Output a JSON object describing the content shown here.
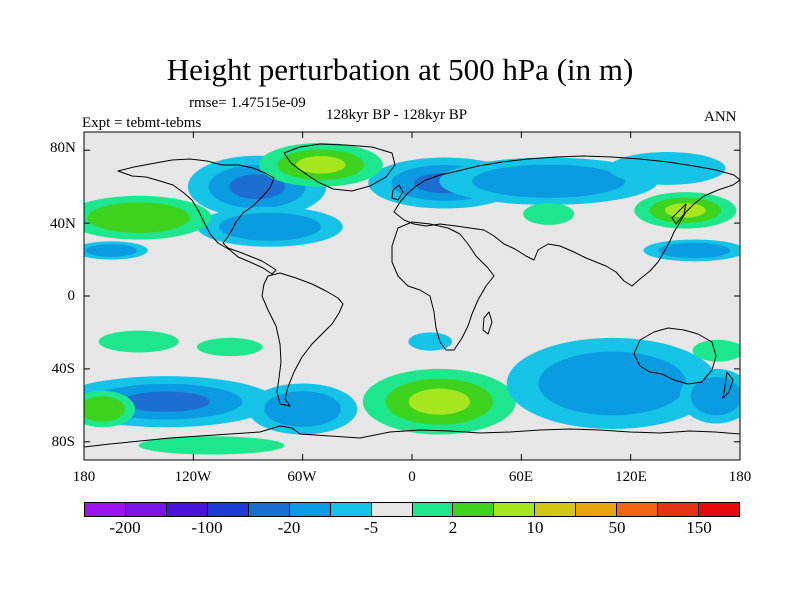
{
  "title": "Height perturbation at 500 hPa (in m)",
  "rmse": "rmse= 1.47515e-09",
  "expt": "Expt = tebmt-tebms",
  "period": "128kyr BP - 128kyr BP",
  "season": "ANN",
  "chart_data": {
    "type": "heatmap",
    "title": "Height perturbation at 500 hPa (in m)",
    "projection": "cylindrical-equidistant",
    "lon_range": [
      -180,
      180
    ],
    "lat_range": [
      -90,
      90
    ],
    "background": "#e6e6e6",
    "lat_ticks": [
      {
        "value": 80,
        "label": "80N"
      },
      {
        "value": 40,
        "label": "40N"
      },
      {
        "value": 0,
        "label": "0"
      },
      {
        "value": -40,
        "label": "40S"
      },
      {
        "value": -80,
        "label": "80S"
      }
    ],
    "lon_ticks": [
      {
        "value": -180,
        "label": "180"
      },
      {
        "value": -120,
        "label": "120W"
      },
      {
        "value": -60,
        "label": "60W"
      },
      {
        "value": 0,
        "label": "0"
      },
      {
        "value": 60,
        "label": "60E"
      },
      {
        "value": 120,
        "label": "120E"
      },
      {
        "value": 180,
        "label": "180"
      }
    ],
    "colorbar": {
      "colors": [
        "#9a14f0",
        "#7d14e6",
        "#4b14dc",
        "#1e3cd2",
        "#1e6ed2",
        "#0a9be1",
        "#14c3e6",
        "#e6e6e6",
        "#1ee68c",
        "#3cd21e",
        "#a5e61e",
        "#d2c814",
        "#e6a50a",
        "#f06414",
        "#e63214",
        "#e60a0a"
      ],
      "labels": [
        "-200",
        "-100",
        "-20",
        "-5",
        "2",
        "10",
        "50",
        "150"
      ]
    },
    "anomalies": [
      {
        "lon": 18,
        "lat": 62,
        "rx": 42,
        "ry": 14,
        "levels": [
          -0.6,
          -1.2,
          -2.0
        ]
      },
      {
        "lon": 75,
        "lat": 63,
        "rx": 60,
        "ry": 13,
        "levels": [
          -0.6,
          -1.2
        ]
      },
      {
        "lon": 140,
        "lat": 70,
        "rx": 32,
        "ry": 9,
        "levels": [
          -0.6
        ]
      },
      {
        "lon": -85,
        "lat": 60,
        "rx": 38,
        "ry": 17,
        "levels": [
          -0.6,
          -1.2,
          -2.0
        ]
      },
      {
        "lon": -78,
        "lat": 38,
        "rx": 40,
        "ry": 11,
        "levels": [
          -0.6,
          -1.2
        ]
      },
      {
        "lon": -50,
        "lat": 72,
        "rx": 34,
        "ry": 12,
        "levels": [
          0.6,
          1.2,
          2.0
        ]
      },
      {
        "lon": -150,
        "lat": 43,
        "rx": 40,
        "ry": 12,
        "levels": [
          0.6,
          1.2
        ]
      },
      {
        "lon": -165,
        "lat": 25,
        "rx": 20,
        "ry": 5,
        "levels": [
          -0.6,
          -1.2
        ]
      },
      {
        "lon": 150,
        "lat": 47,
        "rx": 28,
        "ry": 10,
        "levels": [
          0.6,
          1.2,
          2.0
        ]
      },
      {
        "lon": 75,
        "lat": 45,
        "rx": 14,
        "ry": 6,
        "levels": [
          0.6
        ]
      },
      {
        "lon": 155,
        "lat": 25,
        "rx": 28,
        "ry": 6,
        "levels": [
          -0.6,
          -1.2
        ]
      },
      {
        "lon": -135,
        "lat": -58,
        "rx": 60,
        "ry": 14,
        "levels": [
          -0.6,
          -1.2,
          -2.0
        ]
      },
      {
        "lon": -170,
        "lat": -62,
        "rx": 18,
        "ry": 10,
        "levels": [
          0.6,
          1.2
        ]
      },
      {
        "lon": -150,
        "lat": -25,
        "rx": 22,
        "ry": 6,
        "levels": [
          0.6
        ]
      },
      {
        "lon": -100,
        "lat": -28,
        "rx": 18,
        "ry": 5,
        "levels": [
          0.6
        ]
      },
      {
        "lon": -60,
        "lat": -62,
        "rx": 30,
        "ry": 14,
        "levels": [
          -0.6,
          -1.2
        ]
      },
      {
        "lon": 15,
        "lat": -58,
        "rx": 42,
        "ry": 18,
        "levels": [
          0.6,
          1.2,
          2.0
        ]
      },
      {
        "lon": 10,
        "lat": -25,
        "rx": 12,
        "ry": 5,
        "levels": [
          -0.6
        ]
      },
      {
        "lon": 110,
        "lat": -48,
        "rx": 58,
        "ry": 25,
        "levels": [
          -0.6,
          -1.2
        ]
      },
      {
        "lon": 167,
        "lat": -55,
        "rx": 20,
        "ry": 15,
        "levels": [
          -0.6,
          -1.2
        ]
      },
      {
        "lon": 168,
        "lat": -30,
        "rx": 14,
        "ry": 6,
        "levels": [
          0.6
        ]
      },
      {
        "lon": -110,
        "lat": -82,
        "rx": 40,
        "ry": 5,
        "levels": [
          0.6
        ]
      }
    ]
  }
}
